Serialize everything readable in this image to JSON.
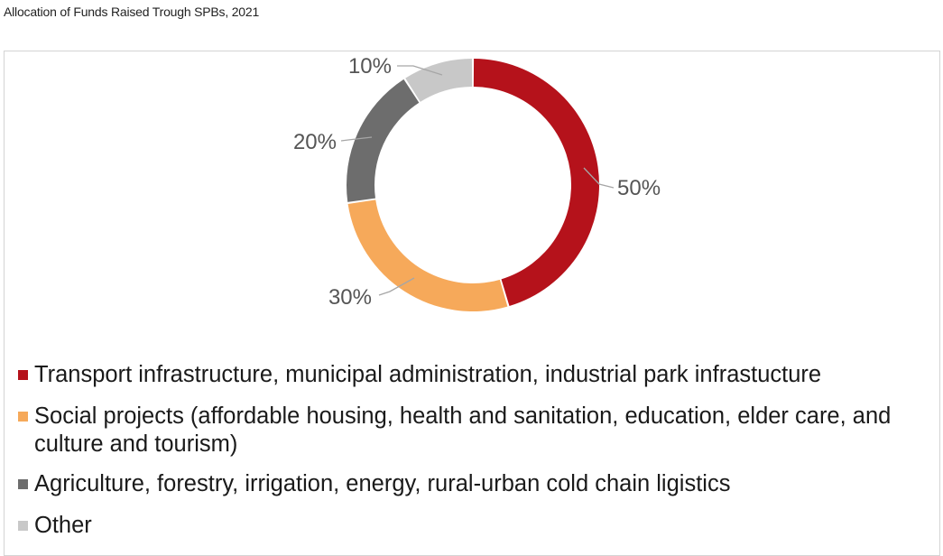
{
  "title": "Allocation of Funds Raised Trough SPBs, 2021",
  "chart_data": {
    "type": "pie",
    "donut": true,
    "title": "Allocation of Funds Raised Trough SPBs, 2021",
    "start_angle_deg": 0,
    "direction": "clockwise",
    "legend_position": "bottom",
    "series": [
      {
        "name": "Transport infrastructure, municipal administration, industrial park infrastucture",
        "value": 50,
        "label": "50%",
        "color": "#b5121b"
      },
      {
        "name": "Social projects (affordable housing, health and sanitation, education, elder care, and culture and tourism)",
        "value": 30,
        "label": "30%",
        "color": "#f6a95a"
      },
      {
        "name": "Agriculture, forestry, irrigation, energy, rural-urban cold chain ligistics",
        "value": 20,
        "label": "20%",
        "color": "#6d6d6d"
      },
      {
        "name": "Other",
        "value": 10,
        "label": "10%",
        "color": "#c8c8c8"
      }
    ]
  }
}
